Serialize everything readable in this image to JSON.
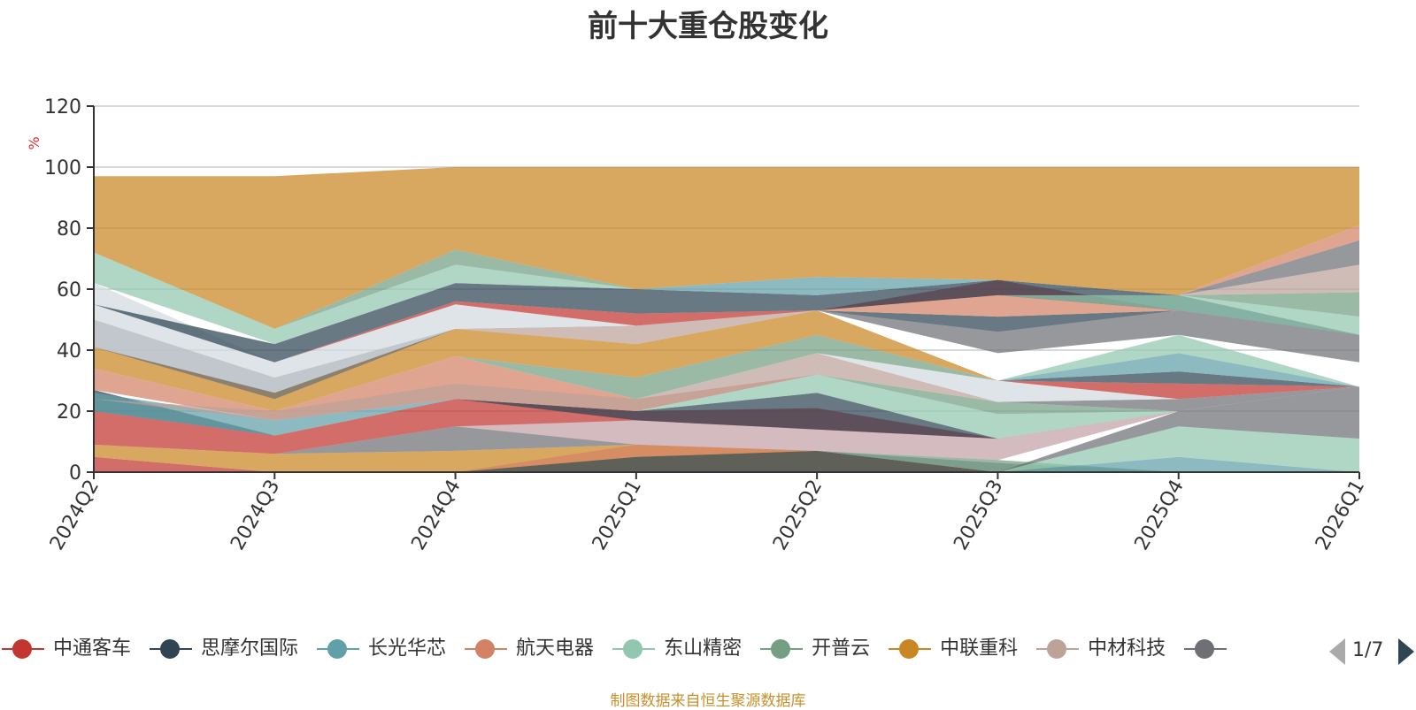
{
  "title": "前十大重仓股变化",
  "source_note": "制图数据来自恒生聚源数据库",
  "pager": {
    "page": "1/7"
  },
  "legend": [
    {
      "name": "中通客车",
      "color": "#c23531"
    },
    {
      "name": "思摩尔国际",
      "color": "#2f4554"
    },
    {
      "name": "长光华芯",
      "color": "#61a0a8"
    },
    {
      "name": "航天电器",
      "color": "#d48265"
    },
    {
      "name": "东山精密",
      "color": "#91c7ae"
    },
    {
      "name": "开普云",
      "color": "#749f83"
    },
    {
      "name": "中联重科",
      "color": "#ca8622"
    },
    {
      "name": "中材科技",
      "color": "#bda29a"
    },
    {
      "name": "",
      "color": "#6e7074"
    }
  ],
  "chart_data": {
    "type": "area",
    "title": "前十大重仓股变化",
    "ylabel": "%",
    "ylim": [
      0,
      120
    ],
    "yticks": [
      0,
      20,
      40,
      60,
      80,
      100,
      120
    ],
    "categories": [
      "2024Q2",
      "2024Q3",
      "2024Q4",
      "2025Q1",
      "2025Q2",
      "2025Q3",
      "2025Q4",
      "2026Q1"
    ],
    "grid": true,
    "bands": [
      {
        "color": "#c23531",
        "lower": [
          0,
          0,
          0,
          0,
          0,
          0,
          0,
          0
        ],
        "upper": [
          5,
          0,
          0,
          0,
          0,
          0,
          0,
          0
        ]
      },
      {
        "color": "#ca8622",
        "lower": [
          5,
          0,
          0,
          0,
          0,
          0,
          0,
          0
        ],
        "upper": [
          9,
          6,
          7,
          9,
          7,
          0,
          0,
          0
        ]
      },
      {
        "color": "#2f4554",
        "lower": [
          0,
          0,
          0,
          0,
          0,
          0,
          0,
          0
        ],
        "upper": [
          0,
          0,
          0,
          5,
          7,
          0,
          0,
          0
        ]
      },
      {
        "color": "#6e7074",
        "lower": [
          9,
          6,
          7,
          9,
          7,
          0,
          0,
          0
        ],
        "upper": [
          9,
          6,
          15,
          9,
          7,
          3,
          0,
          0
        ]
      },
      {
        "color": "#749f83",
        "lower": [
          9,
          6,
          15,
          9,
          7,
          0,
          0,
          0
        ],
        "upper": [
          9,
          6,
          15,
          9,
          7,
          4,
          0,
          0
        ]
      },
      {
        "color": "#61a0a8",
        "lower": [
          0,
          0,
          0,
          0,
          0,
          0,
          0,
          0
        ],
        "upper": [
          0,
          0,
          0,
          0,
          0,
          0,
          5,
          0
        ]
      },
      {
        "color": "#91c7ae",
        "lower": [
          0,
          0,
          0,
          0,
          0,
          0,
          5,
          0
        ],
        "upper": [
          0,
          0,
          0,
          0,
          0,
          0,
          15,
          11
        ]
      },
      {
        "color": "#d48265",
        "lower": [
          5,
          0,
          0,
          5,
          7,
          4,
          15,
          11
        ],
        "upper": [
          5,
          0,
          0,
          9,
          7,
          4,
          15,
          11
        ]
      },
      {
        "color": "#6e7074",
        "lower": [
          0,
          0,
          0,
          0,
          0,
          0,
          15,
          11
        ],
        "upper": [
          0,
          0,
          0,
          0,
          0,
          0,
          20,
          28
        ]
      },
      {
        "color": "#c23531",
        "lower": [
          9,
          6,
          15,
          9,
          7,
          4,
          20,
          28
        ],
        "upper": [
          20,
          12,
          24,
          20,
          21,
          11,
          20,
          28
        ]
      },
      {
        "color": "#d3dae1",
        "lower": [
          0,
          0,
          15,
          9,
          7,
          4,
          20,
          28
        ],
        "upper": [
          0,
          0,
          15,
          17,
          14,
          11,
          20,
          28
        ]
      },
      {
        "color": "#2f4554",
        "lower": [
          20,
          12,
          24,
          17,
          14,
          11,
          20,
          28
        ],
        "upper": [
          27,
          12,
          24,
          20,
          26,
          11,
          20,
          28
        ]
      },
      {
        "color": "#61a0a8",
        "lower": [
          20,
          12,
          24,
          20,
          26,
          11,
          20,
          28
        ],
        "upper": [
          26,
          17,
          24,
          20,
          26,
          11,
          20,
          28
        ]
      },
      {
        "color": "#91c7ae",
        "lower": [
          20,
          12,
          24,
          20,
          26,
          11,
          20,
          28
        ],
        "upper": [
          20,
          12,
          24,
          20,
          32,
          19,
          20,
          28
        ]
      },
      {
        "color": "#749f83",
        "lower": [
          20,
          12,
          24,
          20,
          32,
          19,
          20,
          28
        ],
        "upper": [
          20,
          12,
          24,
          20,
          32,
          23,
          20,
          28
        ]
      },
      {
        "color": "#d48265",
        "lower": [
          27,
          17,
          24,
          20,
          32,
          23,
          20,
          28
        ],
        "upper": [
          34,
          20,
          38,
          24,
          32,
          23,
          20,
          28
        ]
      },
      {
        "color": "#bda29a",
        "lower": [
          24,
          17,
          24,
          20,
          32,
          23,
          20,
          28
        ],
        "upper": [
          24,
          20,
          29,
          24,
          39,
          23,
          20,
          28
        ]
      },
      {
        "color": "#6e7074",
        "lower": [
          24,
          20,
          29,
          24,
          39,
          23,
          20,
          28
        ],
        "upper": [
          24,
          20,
          29,
          24,
          39,
          23,
          24,
          28
        ]
      },
      {
        "color": "#d3dae1",
        "lower": [
          24,
          20,
          29,
          24,
          39,
          23,
          24,
          28
        ],
        "upper": [
          24,
          20,
          29,
          24,
          39,
          30,
          24,
          28
        ]
      },
      {
        "color": "#c23531",
        "lower": [
          24,
          20,
          29,
          24,
          39,
          30,
          24,
          28
        ],
        "upper": [
          24,
          20,
          29,
          24,
          39,
          30,
          29,
          28
        ]
      },
      {
        "color": "#2f4554",
        "lower": [
          24,
          20,
          29,
          24,
          39,
          30,
          29,
          28
        ],
        "upper": [
          24,
          20,
          29,
          24,
          39,
          30,
          33,
          28
        ]
      },
      {
        "color": "#61a0a8",
        "lower": [
          24,
          20,
          29,
          24,
          39,
          30,
          33,
          28
        ],
        "upper": [
          24,
          20,
          29,
          24,
          39,
          30,
          39,
          28
        ]
      },
      {
        "color": "#91c7ae",
        "lower": [
          24,
          20,
          29,
          24,
          39,
          30,
          39,
          28
        ],
        "upper": [
          24,
          20,
          29,
          24,
          39,
          30,
          45,
          28
        ]
      },
      {
        "color": "#749f83",
        "lower": [
          34,
          20,
          38,
          24,
          39,
          30,
          45,
          28
        ],
        "upper": [
          34,
          20,
          38,
          31,
          45,
          30,
          45,
          28
        ]
      },
      {
        "color": "#ca8622",
        "lower": [
          34,
          20,
          38,
          31,
          45,
          30,
          45,
          28
        ],
        "upper": [
          41,
          26,
          47,
          42,
          53,
          30,
          45,
          28
        ]
      },
      {
        "color": "#bda29a",
        "lower": [
          41,
          26,
          47,
          42,
          53,
          30,
          45,
          28
        ],
        "upper": [
          41,
          26,
          47,
          48,
          53,
          30,
          45,
          28
        ]
      },
      {
        "color": "#6e7074",
        "lower": [
          41,
          24,
          47,
          48,
          53,
          39,
          45,
          36
        ],
        "upper": [
          50,
          31,
          47,
          48,
          53,
          46,
          53,
          45
        ]
      },
      {
        "color": "#2f4554",
        "lower": [
          50,
          31,
          47,
          48,
          53,
          46,
          53,
          45
        ],
        "upper": [
          50,
          31,
          47,
          48,
          53,
          51,
          53,
          45
        ]
      },
      {
        "color": "#d48265",
        "lower": [
          50,
          31,
          47,
          48,
          53,
          51,
          53,
          45
        ],
        "upper": [
          50,
          31,
          47,
          48,
          53,
          58,
          53,
          45
        ]
      },
      {
        "color": "#d3dae1",
        "lower": [
          41,
          26,
          47,
          48,
          53,
          58,
          53,
          45
        ],
        "upper": [
          62,
          36,
          55,
          48,
          53,
          58,
          53,
          45
        ]
      },
      {
        "color": "#c23531",
        "lower": [
          55,
          36,
          55,
          48,
          53,
          58,
          53,
          45
        ],
        "upper": [
          55,
          36,
          56,
          52,
          53,
          63,
          53,
          45
        ]
      },
      {
        "color": "#2f4554",
        "lower": [
          55,
          36,
          56,
          52,
          53,
          58,
          53,
          45
        ],
        "upper": [
          55,
          42,
          62,
          60,
          58,
          63,
          58,
          45
        ]
      },
      {
        "color": "#91c7ae",
        "lower": [
          62,
          42,
          62,
          60,
          58,
          58,
          53,
          45
        ],
        "upper": [
          72,
          47,
          68,
          60,
          58,
          58,
          58,
          51
        ]
      },
      {
        "color": "#749f83",
        "lower": [
          62,
          47,
          68,
          60,
          58,
          58,
          58,
          51
        ],
        "upper": [
          62,
          47,
          73,
          60,
          58,
          58,
          58,
          59
        ]
      },
      {
        "color": "#61a0a8",
        "lower": [
          62,
          47,
          73,
          60,
          58,
          63,
          58,
          59
        ],
        "upper": [
          62,
          47,
          73,
          60,
          64,
          63,
          58,
          59
        ]
      },
      {
        "color": "#bda29a",
        "lower": [
          62,
          47,
          73,
          60,
          64,
          63,
          58,
          59
        ],
        "upper": [
          62,
          47,
          73,
          60,
          64,
          63,
          58,
          68
        ]
      },
      {
        "color": "#6e7074",
        "lower": [
          62,
          47,
          73,
          60,
          64,
          63,
          58,
          68
        ],
        "upper": [
          62,
          47,
          73,
          60,
          64,
          63,
          58,
          76
        ]
      },
      {
        "color": "#d48265",
        "lower": [
          62,
          47,
          73,
          60,
          64,
          63,
          58,
          76
        ],
        "upper": [
          62,
          47,
          73,
          60,
          64,
          63,
          58,
          81
        ]
      },
      {
        "color": "#ca8622",
        "lower": [
          72,
          47,
          73,
          60,
          64,
          63,
          58,
          81
        ],
        "upper": [
          97,
          97,
          100,
          100,
          100,
          100,
          100,
          100
        ]
      }
    ]
  }
}
